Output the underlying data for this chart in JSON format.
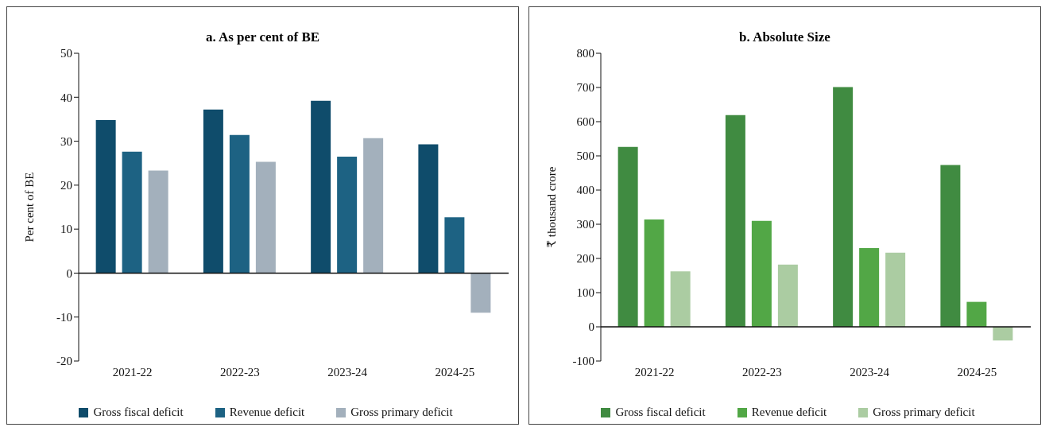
{
  "chart_data": [
    {
      "type": "bar",
      "title": "a. As per cent of BE",
      "ylabel": "Per cent of BE",
      "categories": [
        "2021-22",
        "2022-23",
        "2023-24",
        "2024-25"
      ],
      "series": [
        {
          "name": "Gross fiscal deficit",
          "color": "#0f4c6b",
          "values": [
            34.8,
            37.2,
            39.2,
            29.3
          ]
        },
        {
          "name": "Revenue deficit",
          "color": "#1d6283",
          "values": [
            27.6,
            31.4,
            26.5,
            12.7
          ]
        },
        {
          "name": "Gross primary deficit",
          "color": "#a3b0bc",
          "values": [
            23.3,
            25.3,
            30.7,
            -9.0
          ]
        }
      ],
      "ylim": [
        -20,
        50
      ],
      "yticks": [
        -20,
        -10,
        0,
        10,
        20,
        30,
        40,
        50
      ],
      "grid": false,
      "legend": "bottom",
      "ref_lines": [
        {
          "axis": "y",
          "value": 0
        }
      ]
    },
    {
      "type": "bar",
      "title": "b. Absolute Size",
      "ylabel": "₹ thousand crore",
      "categories": [
        "2021-22",
        "2022-23",
        "2023-24",
        "2024-25"
      ],
      "series": [
        {
          "name": "Gross fiscal deficit",
          "color": "#408b41",
          "values": [
            526,
            619,
            701,
            473
          ]
        },
        {
          "name": "Revenue deficit",
          "color": "#52a746",
          "values": [
            314,
            310,
            230,
            73
          ]
        },
        {
          "name": "Gross primary deficit",
          "color": "#abcca2",
          "values": [
            162,
            182,
            217,
            -40
          ]
        }
      ],
      "ylim": [
        -100,
        800
      ],
      "yticks": [
        -100,
        0,
        100,
        200,
        300,
        400,
        500,
        600,
        700,
        800
      ],
      "grid": false,
      "legend": "bottom",
      "ref_lines": [
        {
          "axis": "y",
          "value": 0
        }
      ]
    }
  ]
}
